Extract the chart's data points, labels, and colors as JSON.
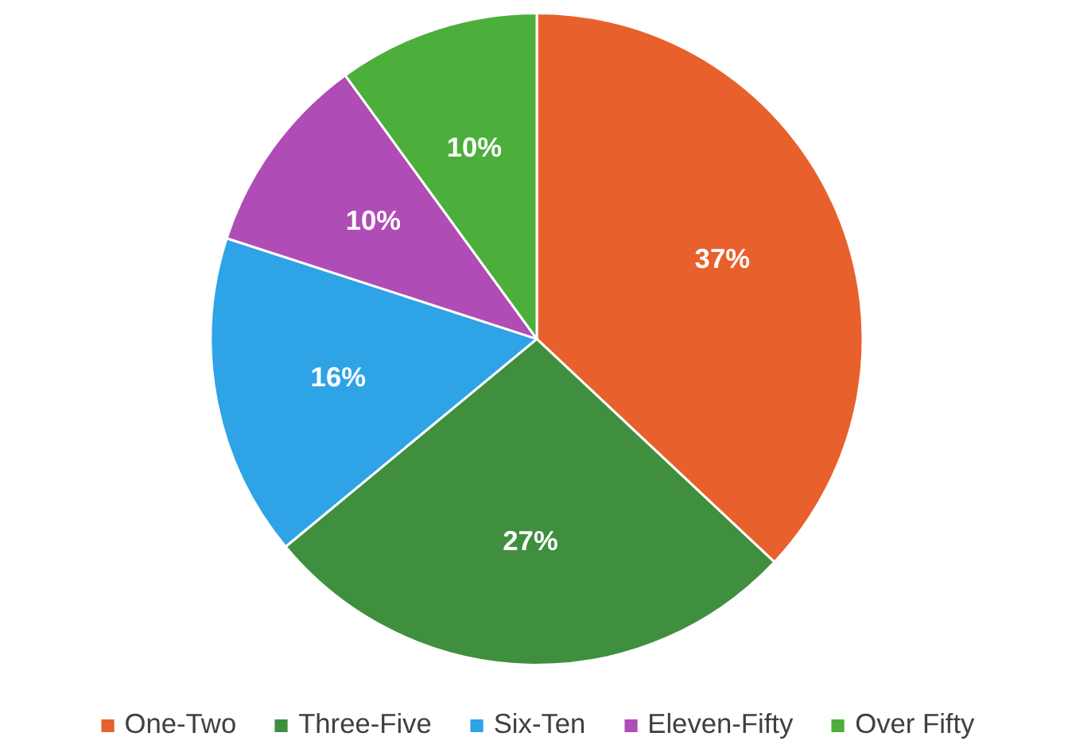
{
  "chart_data": {
    "type": "pie",
    "categories": [
      "One-Two",
      "Three-Five",
      "Six-Ten",
      "Eleven-Fifty",
      "Over Fifty"
    ],
    "values": [
      37,
      27,
      16,
      10,
      10
    ],
    "colors": [
      "#e8612c",
      "#3f8f3f",
      "#2ea3e6",
      "#b04cb6",
      "#4caf3c"
    ],
    "value_labels": [
      "37%",
      "27%",
      "16%",
      "10%",
      "10%"
    ],
    "legend": "bottom"
  }
}
